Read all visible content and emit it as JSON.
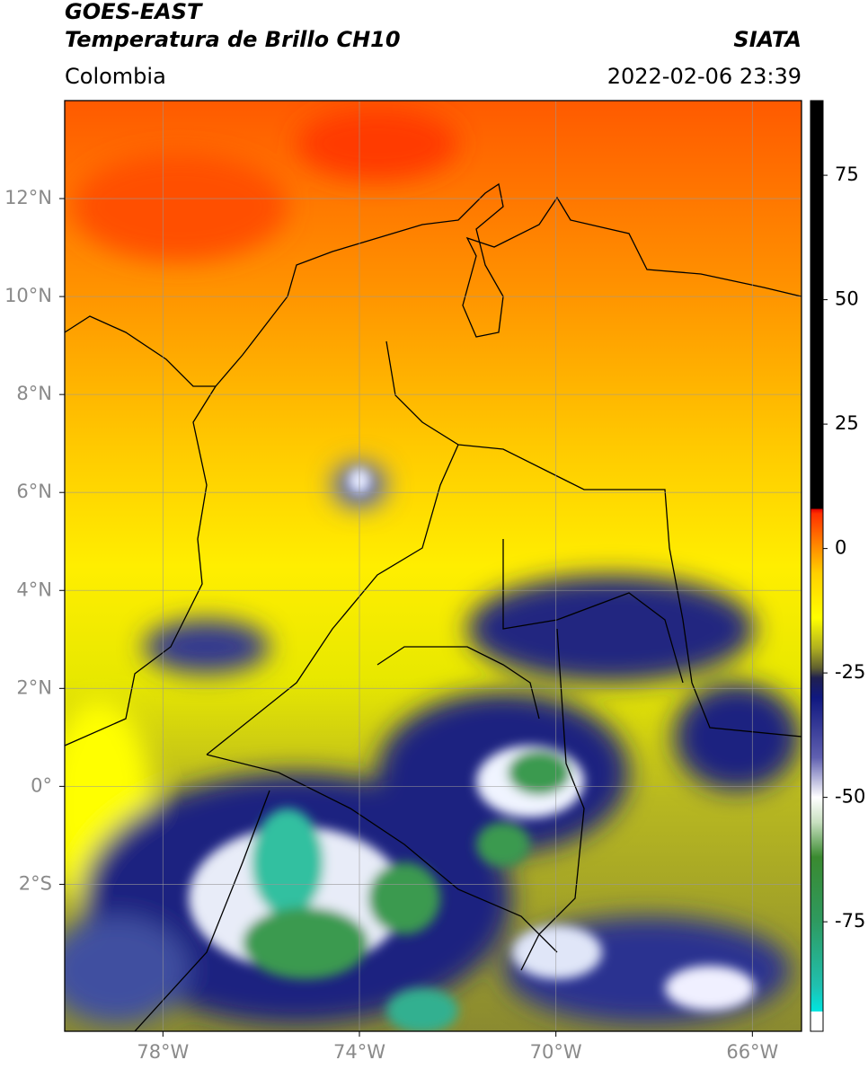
{
  "header": {
    "title": "GOES-EAST",
    "subtitle": "Temperatura de Brillo CH10",
    "source": "SIATA",
    "region": "Colombia",
    "timestamp": "2022-02-06 23:39"
  },
  "map": {
    "xlim": [
      -80,
      -65
    ],
    "ylim": [
      -5,
      14
    ],
    "grid": true,
    "xticks": [
      {
        "value": -78,
        "label": "78°W"
      },
      {
        "value": -74,
        "label": "74°W"
      },
      {
        "value": -70,
        "label": "70°W"
      },
      {
        "value": -66,
        "label": "66°W"
      }
    ],
    "yticks": [
      {
        "value": 12,
        "label": "12°N"
      },
      {
        "value": 10,
        "label": "10°N"
      },
      {
        "value": 8,
        "label": "8°N"
      },
      {
        "value": 6,
        "label": "6°N"
      },
      {
        "value": 4,
        "label": "4°N"
      },
      {
        "value": 2,
        "label": "2°N"
      },
      {
        "value": 0,
        "label": "0°"
      },
      {
        "value": -2,
        "label": "2°S"
      }
    ]
  },
  "colorbar": {
    "lim": [
      -97,
      90
    ],
    "ticks": [
      75,
      50,
      25,
      0,
      -25,
      -50,
      -75
    ],
    "stops": [
      {
        "value": -97,
        "color": "#ffffff"
      },
      {
        "value": -93,
        "color": "#ffffff"
      },
      {
        "value": -93,
        "color": "#00e5e0"
      },
      {
        "value": -88,
        "color": "#20c0b0"
      },
      {
        "value": -75,
        "color": "#2e9a60"
      },
      {
        "value": -62,
        "color": "#3a8a30"
      },
      {
        "value": -55,
        "color": "#c8e0c0"
      },
      {
        "value": -50,
        "color": "#ffffff"
      },
      {
        "value": -42,
        "color": "#6060b0"
      },
      {
        "value": -30,
        "color": "#101880"
      },
      {
        "value": -26,
        "color": "#202050"
      },
      {
        "value": -24,
        "color": "#606030"
      },
      {
        "value": -20,
        "color": "#b0b020"
      },
      {
        "value": -14,
        "color": "#ffff00"
      },
      {
        "value": -5,
        "color": "#ffd000"
      },
      {
        "value": 0,
        "color": "#ff9000"
      },
      {
        "value": 7,
        "color": "#ff3000"
      },
      {
        "value": 8,
        "color": "#e00000"
      },
      {
        "value": 8,
        "color": "#000000"
      },
      {
        "value": 90,
        "color": "#000000"
      }
    ]
  }
}
